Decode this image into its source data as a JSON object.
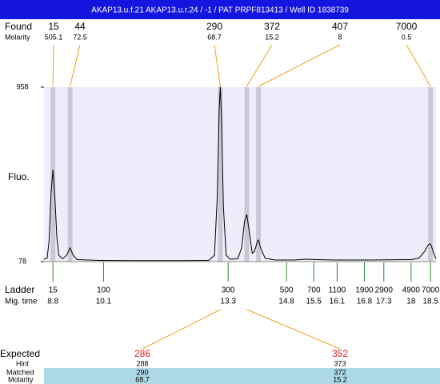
{
  "title": "AKAP13.u.f.21  AKAP13.u.r.24 / -1 / PAT PRPF813413 / Well ID 1838739",
  "found": {
    "label": "Found",
    "molarity_label": "Molarity",
    "peaks": [
      {
        "size": 15,
        "molarity": 505.1,
        "time": 8.8
      },
      {
        "size": 44,
        "molarity": 72.5,
        "time": 9.24
      },
      {
        "size": 290,
        "molarity": 68.7,
        "time": 13.1
      },
      {
        "size": 372,
        "molarity": 15.2,
        "time": 13.78
      },
      {
        "size": 407,
        "molarity": 8,
        "time": 14.08
      },
      {
        "size": 7000,
        "molarity": 0.5,
        "time": 18.5
      }
    ]
  },
  "chart_data": {
    "type": "line",
    "ylabel": "Fluo.",
    "color": "#000000",
    "xlim": [
      8.57,
      18.64
    ],
    "ylim": [
      78,
      958
    ],
    "yticks": [
      78,
      958
    ],
    "x": [
      8.57,
      8.65,
      8.7,
      8.75,
      8.8,
      8.85,
      8.9,
      8.95,
      9.05,
      9.15,
      9.24,
      9.32,
      9.42,
      10,
      11,
      12,
      12.8,
      12.95,
      13.02,
      13.07,
      13.1,
      13.13,
      13.18,
      13.25,
      13.35,
      13.55,
      13.65,
      13.72,
      13.78,
      13.85,
      13.92,
      13.98,
      14.05,
      14.08,
      14.13,
      14.25,
      14.5,
      15,
      15.3,
      15.6,
      16,
      17,
      18,
      18.2,
      18.35,
      18.45,
      18.5,
      18.55,
      18.62,
      18.64
    ],
    "values": [
      90,
      95,
      180,
      420,
      542,
      400,
      200,
      110,
      92,
      110,
      147,
      110,
      88,
      84,
      83,
      83,
      84,
      110,
      400,
      850,
      960,
      800,
      350,
      110,
      90,
      92,
      150,
      280,
      316,
      220,
      120,
      130,
      180,
      187,
      150,
      95,
      86,
      86,
      90,
      88,
      86,
      86,
      88,
      95,
      130,
      165,
      167,
      140,
      100,
      92
    ]
  },
  "ladder": {
    "label": "Ladder",
    "time_label": "Mig. time",
    "items": [
      {
        "size": 15,
        "time": 8.8
      },
      {
        "size": 100,
        "time": 10.1
      },
      {
        "size": 300,
        "time": 13.3
      },
      {
        "size": 500,
        "time": 14.8
      },
      {
        "size": 700,
        "time": 15.5
      },
      {
        "size": 1100,
        "time": 16.1
      },
      {
        "size": 1900,
        "time": 16.8
      },
      {
        "size": 2900,
        "time": 17.3
      },
      {
        "size": 4900,
        "time": 18
      },
      {
        "size": 7000,
        "time": 18.5
      }
    ]
  },
  "expected": {
    "label": "Expected",
    "hint_label": "Hint",
    "matched_label": "Matched",
    "molarity_label": "Molarity",
    "items": [
      {
        "expected": 286,
        "hint": 288,
        "matched": 290,
        "molarity": 68.7
      },
      {
        "expected": 352,
        "hint": 373,
        "matched": 372,
        "molarity": 15.2
      }
    ]
  }
}
